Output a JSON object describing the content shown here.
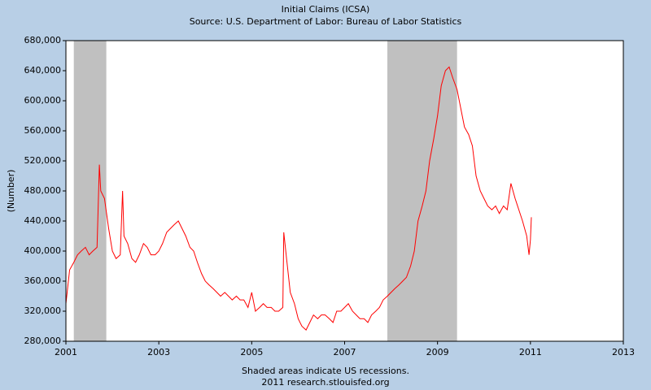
{
  "chart_data": {
    "type": "line",
    "title": "Initial Claims (ICSA)",
    "subtitle": "Source: U.S. Department of Labor: Bureau of Labor Statistics",
    "y_label": "(Number)",
    "notes": [
      "Shaded areas indicate US recessions.",
      "2011 research.stlouisfed.org"
    ],
    "xlim": [
      2001,
      2013
    ],
    "xticks": [
      2001,
      2003,
      2005,
      2007,
      2009,
      2011,
      2013
    ],
    "ylim": [
      280000,
      680000
    ],
    "yticks": [
      {
        "value": 280000,
        "label": "280,000"
      },
      {
        "value": 320000,
        "label": "320,000"
      },
      {
        "value": 360000,
        "label": "360,000"
      },
      {
        "value": 400000,
        "label": "400,000"
      },
      {
        "value": 440000,
        "label": "440,000"
      },
      {
        "value": 480000,
        "label": "480,000"
      },
      {
        "value": 520000,
        "label": "520,000"
      },
      {
        "value": 560000,
        "label": "560,000"
      },
      {
        "value": 600000,
        "label": "600,000"
      },
      {
        "value": 640000,
        "label": "640,000"
      },
      {
        "value": 680000,
        "label": "680,000"
      }
    ],
    "grid": false,
    "recessions": [
      [
        2001.17,
        2001.87
      ],
      [
        2007.92,
        2009.42
      ]
    ],
    "recession_color": "#c0c0c0",
    "x": [
      2001.0,
      2001.08,
      2001.17,
      2001.25,
      2001.33,
      2001.42,
      2001.5,
      2001.58,
      2001.67,
      2001.72,
      2001.75,
      2001.83,
      2001.92,
      2002.0,
      2002.08,
      2002.17,
      2002.22,
      2002.25,
      2002.33,
      2002.42,
      2002.5,
      2002.58,
      2002.67,
      2002.75,
      2002.83,
      2002.92,
      2003.0,
      2003.08,
      2003.17,
      2003.25,
      2003.33,
      2003.42,
      2003.5,
      2003.58,
      2003.67,
      2003.75,
      2003.83,
      2003.92,
      2004.0,
      2004.08,
      2004.17,
      2004.25,
      2004.33,
      2004.42,
      2004.5,
      2004.58,
      2004.67,
      2004.75,
      2004.83,
      2004.92,
      2005.0,
      2005.08,
      2005.17,
      2005.25,
      2005.33,
      2005.42,
      2005.5,
      2005.58,
      2005.67,
      2005.69,
      2005.75,
      2005.83,
      2005.92,
      2006.0,
      2006.08,
      2006.17,
      2006.25,
      2006.33,
      2006.42,
      2006.5,
      2006.58,
      2006.67,
      2006.75,
      2006.83,
      2006.92,
      2007.0,
      2007.08,
      2007.17,
      2007.25,
      2007.33,
      2007.42,
      2007.5,
      2007.58,
      2007.67,
      2007.75,
      2007.83,
      2007.92,
      2008.0,
      2008.08,
      2008.17,
      2008.25,
      2008.33,
      2008.42,
      2008.5,
      2008.58,
      2008.67,
      2008.75,
      2008.83,
      2008.92,
      2009.0,
      2009.08,
      2009.17,
      2009.25,
      2009.33,
      2009.42,
      2009.5,
      2009.58,
      2009.67,
      2009.75,
      2009.83,
      2009.92,
      2010.0,
      2010.08,
      2010.17,
      2010.25,
      2010.33,
      2010.42,
      2010.5,
      2010.58,
      2010.67,
      2010.75,
      2010.83,
      2010.92,
      2010.97,
      2011.0,
      2011.02
    ],
    "series": [
      {
        "name": "ICSA",
        "color": "#ff0000",
        "values": [
          330000,
          375000,
          385000,
          395000,
          400000,
          405000,
          395000,
          400000,
          405000,
          515000,
          480000,
          470000,
          430000,
          400000,
          390000,
          395000,
          480000,
          420000,
          410000,
          390000,
          385000,
          395000,
          410000,
          405000,
          395000,
          395000,
          400000,
          410000,
          425000,
          430000,
          435000,
          440000,
          430000,
          420000,
          405000,
          400000,
          385000,
          370000,
          360000,
          355000,
          350000,
          345000,
          340000,
          345000,
          340000,
          335000,
          340000,
          335000,
          335000,
          325000,
          345000,
          320000,
          325000,
          330000,
          325000,
          325000,
          320000,
          320000,
          325000,
          425000,
          390000,
          345000,
          330000,
          310000,
          300000,
          295000,
          305000,
          315000,
          310000,
          315000,
          315000,
          310000,
          305000,
          320000,
          320000,
          325000,
          330000,
          320000,
          315000,
          310000,
          310000,
          305000,
          315000,
          320000,
          325000,
          335000,
          340000,
          345000,
          350000,
          355000,
          360000,
          365000,
          380000,
          400000,
          440000,
          460000,
          480000,
          520000,
          550000,
          580000,
          620000,
          640000,
          645000,
          630000,
          615000,
          590000,
          565000,
          555000,
          540000,
          500000,
          480000,
          470000,
          460000,
          455000,
          460000,
          450000,
          460000,
          455000,
          490000,
          470000,
          455000,
          440000,
          420000,
          395000,
          415000,
          445000
        ]
      }
    ]
  }
}
